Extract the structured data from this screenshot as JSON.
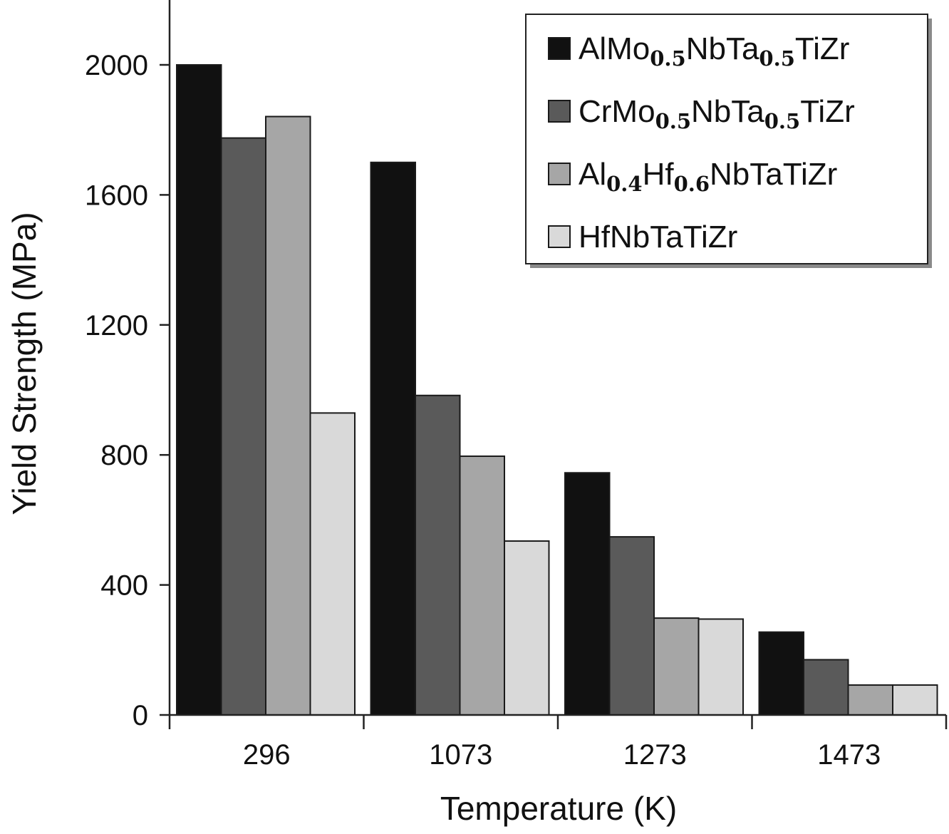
{
  "chart_data": {
    "type": "bar",
    "xlabel": "Temperature (K)",
    "ylabel": "Yield Strength (MPa)",
    "categories": [
      "296",
      "1073",
      "1273",
      "1473"
    ],
    "ylim": [
      0,
      2000
    ],
    "yticks": [
      0,
      400,
      800,
      1200,
      1600,
      2000
    ],
    "legend_position": "top-right",
    "grid": false,
    "series": [
      {
        "name": "AlMo0.5NbTa0.5TiZr",
        "label_parts": [
          {
            "text": "AlMo",
            "sub": false
          },
          {
            "text": "0.5",
            "sub": true
          },
          {
            "text": "NbTa",
            "sub": false
          },
          {
            "text": "0.5",
            "sub": true
          },
          {
            "text": "TiZr",
            "sub": false
          }
        ],
        "color": "#111111",
        "values": [
          2000,
          1700,
          745,
          255
        ]
      },
      {
        "name": "CrMo0.5NbTa0.5TiZr",
        "label_parts": [
          {
            "text": "CrMo",
            "sub": false
          },
          {
            "text": "0.5",
            "sub": true
          },
          {
            "text": "NbTa",
            "sub": false
          },
          {
            "text": "0.5",
            "sub": true
          },
          {
            "text": "TiZr",
            "sub": false
          }
        ],
        "color": "#5a5a5a",
        "values": [
          1775,
          983,
          548,
          170
        ]
      },
      {
        "name": "Al0.4Hf0.6NbTaTiZr",
        "label_parts": [
          {
            "text": "Al",
            "sub": false
          },
          {
            "text": "0.4",
            "sub": true
          },
          {
            "text": "Hf",
            "sub": false
          },
          {
            "text": "0.6",
            "sub": true
          },
          {
            "text": "NbTaTiZr",
            "sub": false
          }
        ],
        "color": "#a6a6a6",
        "values": [
          1841,
          796,
          298,
          92
        ]
      },
      {
        "name": "HfNbTaTiZr",
        "label_parts": [
          {
            "text": "HfNbTaTiZr",
            "sub": false
          }
        ],
        "color": "#d9d9d9",
        "values": [
          929,
          535,
          295,
          92
        ]
      }
    ]
  }
}
